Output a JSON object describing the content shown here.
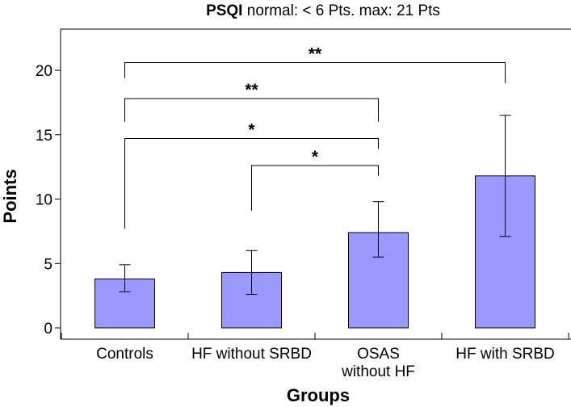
{
  "title": {
    "bold": "PSQI",
    "rest": " normal: < 6 Pts.  max: 21 Pts"
  },
  "colors": {
    "bar_fill": "#9999ff",
    "bar_stroke": "#000000",
    "axis": "#000000"
  },
  "chart_data": {
    "type": "bar",
    "title": "PSQI normal: < 6 Pts.  max: 21 Pts",
    "xlabel": "Groups",
    "ylabel": "Points",
    "ylim": [
      0,
      23.2
    ],
    "yticks": [
      0,
      5,
      10,
      15,
      20
    ],
    "categories": [
      [
        "Controls"
      ],
      [
        "HF without SRBD"
      ],
      [
        "OSAS",
        "without HF"
      ],
      [
        "HF with SRBD"
      ]
    ],
    "values": [
      3.8,
      4.3,
      7.4,
      11.8
    ],
    "error_low": [
      2.8,
      2.6,
      5.5,
      7.1
    ],
    "error_high": [
      4.9,
      6.0,
      9.8,
      16.5
    ],
    "grid": false,
    "significance": [
      {
        "from": 0,
        "to": 3,
        "label": "**",
        "y": 20.6,
        "left_drop": 1.2,
        "right_drop": 1.6
      },
      {
        "from": 0,
        "to": 2,
        "label": "**",
        "y": 17.8,
        "left_drop": 1.8,
        "right_drop": 1.8
      },
      {
        "from": 0,
        "to": 2,
        "label": "*",
        "y": 14.7,
        "left_drop": 7.0,
        "right_drop": 0.8
      },
      {
        "from": 1,
        "to": 2,
        "label": "*",
        "y": 12.6,
        "left_drop": 3.5,
        "right_drop": 0.8
      }
    ]
  }
}
